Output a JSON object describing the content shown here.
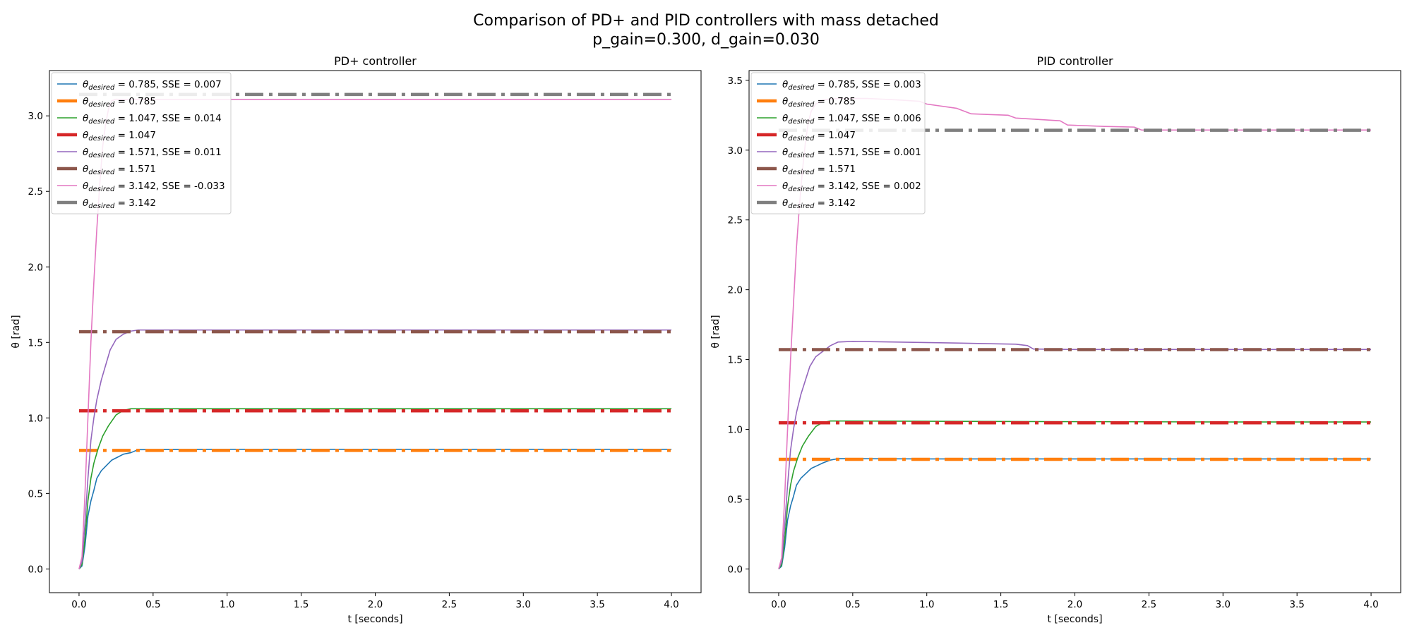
{
  "figure": {
    "title_line1": "Comparison of PD+ and PID controllers with mass detached",
    "title_line2": "p_gain=0.300, d_gain=0.030"
  },
  "colors": {
    "blue": "#1f77b4",
    "orange": "#ff7f0e",
    "green": "#2ca02c",
    "red": "#d62728",
    "purple": "#9467bd",
    "brown": "#8c564b",
    "pink": "#e377c2",
    "gray": "#7f7f7f"
  },
  "chart_data": [
    {
      "type": "line",
      "title": "PD+ controller",
      "xlabel": "t [seconds]",
      "ylabel": "θ [rad]",
      "xlim": [
        -0.2,
        4.2
      ],
      "ylim": [
        -0.157,
        3.3
      ],
      "xticks": [
        0.0,
        0.5,
        1.0,
        1.5,
        2.0,
        2.5,
        3.0,
        3.5,
        4.0
      ],
      "xtick_labels": [
        "0.0",
        "0.5",
        "1.0",
        "1.5",
        "2.0",
        "2.5",
        "3.0",
        "3.5",
        "4.0"
      ],
      "yticks": [
        0.0,
        0.5,
        1.0,
        1.5,
        2.0,
        2.5,
        3.0
      ],
      "ytick_labels": [
        "0.0",
        "0.5",
        "1.0",
        "1.5",
        "2.0",
        "2.5",
        "3.0"
      ],
      "grid": false,
      "legend_position": "upper-left",
      "series": [
        {
          "name": "θdesired = 0.785, SSE = 0.007",
          "legend_main": "θ",
          "legend_sub": "desired",
          "legend_rest": " = 0.785, SSE = 0.007",
          "color": "blue",
          "style": "solid",
          "x": [
            0,
            0.02,
            0.04,
            0.06,
            0.08,
            0.1,
            0.12,
            0.15,
            0.18,
            0.22,
            0.26,
            0.3,
            0.35,
            0.4,
            1.0,
            2.0,
            3.0,
            4.0
          ],
          "y": [
            0,
            0.02,
            0.15,
            0.35,
            0.45,
            0.52,
            0.6,
            0.65,
            0.68,
            0.72,
            0.74,
            0.76,
            0.77,
            0.79,
            0.792,
            0.792,
            0.792,
            0.792
          ]
        },
        {
          "name": "θdesired = 0.785",
          "legend_main": "θ",
          "legend_sub": "desired",
          "legend_rest": " = 0.785",
          "color": "orange",
          "style": "dashdot",
          "x": [
            0,
            4.0
          ],
          "y": [
            0.785,
            0.785
          ]
        },
        {
          "name": "θdesired = 1.047, SSE = 0.014",
          "legend_main": "θ",
          "legend_sub": "desired",
          "legend_rest": " = 1.047, SSE = 0.014",
          "color": "green",
          "style": "solid",
          "x": [
            0,
            0.02,
            0.04,
            0.06,
            0.08,
            0.1,
            0.13,
            0.16,
            0.2,
            0.25,
            0.3,
            0.35,
            1.0,
            2.0,
            3.0,
            4.0
          ],
          "y": [
            0,
            0.03,
            0.2,
            0.45,
            0.6,
            0.7,
            0.8,
            0.88,
            0.95,
            1.02,
            1.05,
            1.061,
            1.061,
            1.061,
            1.061,
            1.061
          ]
        },
        {
          "name": "θdesired = 1.047",
          "legend_main": "θ",
          "legend_sub": "desired",
          "legend_rest": " = 1.047",
          "color": "red",
          "style": "dashdot",
          "x": [
            0,
            4.0
          ],
          "y": [
            1.047,
            1.047
          ]
        },
        {
          "name": "θdesired = 1.571, SSE = 0.011",
          "legend_main": "θ",
          "legend_sub": "desired",
          "legend_rest": " = 1.571, SSE = 0.011",
          "color": "purple",
          "style": "solid",
          "x": [
            0,
            0.02,
            0.04,
            0.06,
            0.08,
            0.1,
            0.12,
            0.15,
            0.18,
            0.21,
            0.25,
            0.3,
            0.35,
            0.4,
            1.0,
            2.0,
            3.0,
            4.0
          ],
          "y": [
            0,
            0.05,
            0.3,
            0.6,
            0.85,
            1.0,
            1.12,
            1.25,
            1.35,
            1.45,
            1.52,
            1.555,
            1.575,
            1.582,
            1.582,
            1.582,
            1.582,
            1.582
          ]
        },
        {
          "name": "θdesired = 1.571",
          "legend_main": "θ",
          "legend_sub": "desired",
          "legend_rest": " = 1.571",
          "color": "brown",
          "style": "dashdot",
          "x": [
            0,
            4.0
          ],
          "y": [
            1.571,
            1.571
          ]
        },
        {
          "name": "θdesired = 3.142, SSE = -0.033",
          "legend_main": "θ",
          "legend_sub": "desired",
          "legend_rest": " = 3.142, SSE = -0.033",
          "color": "pink",
          "style": "solid",
          "x": [
            0,
            0.02,
            0.04,
            0.06,
            0.08,
            0.1,
            0.12,
            0.14,
            0.16,
            0.18,
            0.2,
            0.22,
            0.25,
            0.3,
            1.0,
            2.0,
            3.0,
            4.0
          ],
          "y": [
            0,
            0.08,
            0.5,
            1.0,
            1.5,
            1.9,
            2.25,
            2.55,
            2.8,
            2.95,
            3.05,
            3.1,
            3.11,
            3.109,
            3.109,
            3.109,
            3.109,
            3.109
          ]
        },
        {
          "name": "θdesired = 3.142",
          "legend_main": "θ",
          "legend_sub": "desired",
          "legend_rest": " = 3.142",
          "color": "gray",
          "style": "dashdot",
          "x": [
            0,
            4.0
          ],
          "y": [
            3.142,
            3.142
          ]
        }
      ]
    },
    {
      "type": "line",
      "title": "PID controller",
      "xlabel": "t [seconds]",
      "ylabel": "θ [rad]",
      "xlim": [
        -0.2,
        4.2
      ],
      "ylim": [
        -0.17,
        3.57
      ],
      "xticks": [
        0.0,
        0.5,
        1.0,
        1.5,
        2.0,
        2.5,
        3.0,
        3.5,
        4.0
      ],
      "xtick_labels": [
        "0.0",
        "0.5",
        "1.0",
        "1.5",
        "2.0",
        "2.5",
        "3.0",
        "3.5",
        "4.0"
      ],
      "yticks": [
        0.0,
        0.5,
        1.0,
        1.5,
        2.0,
        2.5,
        3.0,
        3.5
      ],
      "ytick_labels": [
        "0.0",
        "0.5",
        "1.0",
        "1.5",
        "2.0",
        "2.5",
        "3.0",
        "3.5"
      ],
      "grid": false,
      "legend_position": "upper-left",
      "series": [
        {
          "name": "θdesired = 0.785, SSE = 0.003",
          "legend_main": "θ",
          "legend_sub": "desired",
          "legend_rest": " = 0.785, SSE = 0.003",
          "color": "blue",
          "style": "solid",
          "x": [
            0,
            0.02,
            0.04,
            0.06,
            0.08,
            0.1,
            0.12,
            0.15,
            0.18,
            0.22,
            0.26,
            0.3,
            0.35,
            0.4,
            1.0,
            2.0,
            3.0,
            4.0
          ],
          "y": [
            0,
            0.02,
            0.15,
            0.35,
            0.45,
            0.52,
            0.6,
            0.65,
            0.68,
            0.72,
            0.74,
            0.76,
            0.78,
            0.79,
            0.788,
            0.788,
            0.788,
            0.788
          ]
        },
        {
          "name": "θdesired = 0.785",
          "legend_main": "θ",
          "legend_sub": "desired",
          "legend_rest": " = 0.785",
          "color": "orange",
          "style": "dashdot",
          "x": [
            0,
            4.0
          ],
          "y": [
            0.785,
            0.785
          ]
        },
        {
          "name": "θdesired = 1.047, SSE = 0.006",
          "legend_main": "θ",
          "legend_sub": "desired",
          "legend_rest": " = 1.047, SSE = 0.006",
          "color": "green",
          "style": "solid",
          "x": [
            0,
            0.02,
            0.04,
            0.06,
            0.08,
            0.1,
            0.13,
            0.16,
            0.2,
            0.25,
            0.3,
            0.35,
            1.0,
            2.0,
            3.0,
            4.0
          ],
          "y": [
            0,
            0.03,
            0.2,
            0.45,
            0.6,
            0.7,
            0.8,
            0.88,
            0.95,
            1.02,
            1.05,
            1.06,
            1.058,
            1.055,
            1.053,
            1.053
          ]
        },
        {
          "name": "θdesired = 1.047",
          "legend_main": "θ",
          "legend_sub": "desired",
          "legend_rest": " = 1.047",
          "color": "red",
          "style": "dashdot",
          "x": [
            0,
            4.0
          ],
          "y": [
            1.047,
            1.047
          ]
        },
        {
          "name": "θdesired = 1.571, SSE = 0.001",
          "legend_main": "θ",
          "legend_sub": "desired",
          "legend_rest": " = 1.571, SSE = 0.001",
          "color": "purple",
          "style": "solid",
          "x": [
            0,
            0.02,
            0.04,
            0.06,
            0.08,
            0.1,
            0.12,
            0.15,
            0.18,
            0.21,
            0.25,
            0.3,
            0.35,
            0.4,
            0.5,
            0.8,
            1.2,
            1.6,
            1.68,
            1.72,
            2.0,
            3.0,
            4.0
          ],
          "y": [
            0,
            0.05,
            0.3,
            0.6,
            0.85,
            1.0,
            1.12,
            1.25,
            1.35,
            1.45,
            1.52,
            1.56,
            1.6,
            1.625,
            1.63,
            1.625,
            1.618,
            1.61,
            1.6,
            1.575,
            1.572,
            1.572,
            1.572
          ]
        },
        {
          "name": "θdesired = 1.571",
          "legend_main": "θ",
          "legend_sub": "desired",
          "legend_rest": " = 1.571",
          "color": "brown",
          "style": "dashdot",
          "x": [
            0,
            4.0
          ],
          "y": [
            1.571,
            1.571
          ]
        },
        {
          "name": "θdesired = 3.142, SSE = 0.002",
          "legend_main": "θ",
          "legend_sub": "desired",
          "legend_rest": " = 3.142, SSE = 0.002",
          "color": "pink",
          "style": "solid",
          "x": [
            0,
            0.02,
            0.04,
            0.06,
            0.08,
            0.1,
            0.12,
            0.14,
            0.16,
            0.18,
            0.2,
            0.22,
            0.25,
            0.3,
            0.4,
            0.6,
            0.8,
            0.95,
            1.0,
            1.2,
            1.3,
            1.55,
            1.6,
            1.9,
            1.95,
            2.2,
            2.4,
            2.45,
            3.0,
            4.0
          ],
          "y": [
            0,
            0.08,
            0.5,
            1.0,
            1.5,
            1.9,
            2.3,
            2.6,
            2.85,
            3.05,
            3.2,
            3.28,
            3.33,
            3.36,
            3.37,
            3.37,
            3.36,
            3.35,
            3.33,
            3.3,
            3.26,
            3.25,
            3.23,
            3.21,
            3.18,
            3.17,
            3.165,
            3.144,
            3.144,
            3.144
          ]
        },
        {
          "name": "θdesired = 3.142",
          "legend_main": "θ",
          "legend_sub": "desired",
          "legend_rest": " = 3.142",
          "color": "gray",
          "style": "dashdot",
          "x": [
            0,
            4.0
          ],
          "y": [
            3.142,
            3.142
          ]
        }
      ]
    }
  ]
}
